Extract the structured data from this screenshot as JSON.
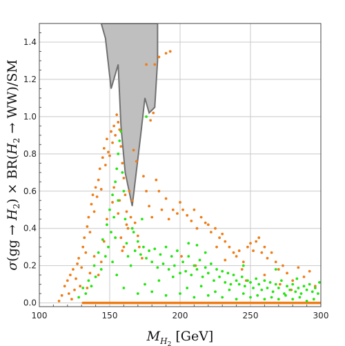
{
  "chart_data": {
    "type": "scatter",
    "xlabel": "M_{H_2} [GeV]",
    "ylabel": "σ(gg → H_2) × BR(H_2 → WW)/SM",
    "xlim": [
      100,
      300
    ],
    "ylim": [
      -0.02,
      1.5
    ],
    "xticks": [
      100,
      150,
      200,
      250,
      300
    ],
    "yticks": [
      0.0,
      0.2,
      0.4,
      0.6,
      0.8,
      1.0,
      1.2,
      1.4
    ],
    "grid": true,
    "colors": {
      "excluded_region": "#bfbfbf",
      "excluded_edge": "#707070",
      "orange_series": "#ef7d16",
      "green_series": "#22e60f"
    },
    "excluded_region": {
      "x": [
        144,
        147,
        151,
        156,
        158,
        161,
        166,
        172,
        175,
        178,
        182,
        184,
        184
      ],
      "y": [
        1.5,
        1.42,
        1.15,
        1.28,
        0.95,
        0.7,
        0.52,
        0.9,
        1.1,
        1.02,
        1.05,
        1.3,
        1.5
      ]
    },
    "series": [
      {
        "color": "orange",
        "points": [
          [
            114,
            0.01
          ],
          [
            116,
            0.04
          ],
          [
            118,
            0.09
          ],
          [
            120,
            0.12
          ],
          [
            121,
            0.05
          ],
          [
            122,
            0.15
          ],
          [
            123,
            0.02
          ],
          [
            124,
            0.18
          ],
          [
            125,
            0.07
          ],
          [
            126,
            0.13
          ],
          [
            127,
            0.21
          ],
          [
            128,
            0.24
          ],
          [
            129,
            0.09
          ],
          [
            130,
            0.19
          ],
          [
            131,
            0.3
          ],
          [
            132,
            0.35
          ],
          [
            133,
            0.27
          ],
          [
            134,
            0.41
          ],
          [
            135,
            0.46
          ],
          [
            136,
            0.38
          ],
          [
            137,
            0.53
          ],
          [
            138,
            0.58
          ],
          [
            139,
            0.49
          ],
          [
            140,
            0.62
          ],
          [
            141,
            0.57
          ],
          [
            142,
            0.66
          ],
          [
            143,
            0.72
          ],
          [
            144,
            0.61
          ],
          [
            145,
            0.78
          ],
          [
            146,
            0.83
          ],
          [
            147,
            0.74
          ],
          [
            148,
            0.88
          ],
          [
            149,
            0.81
          ],
          [
            150,
            0.79
          ],
          [
            151,
            0.92
          ],
          [
            152,
            0.86
          ],
          [
            153,
            0.95
          ],
          [
            154,
            0.9
          ],
          [
            155,
            1.01
          ],
          [
            156,
            0.97
          ],
          [
            157,
            0.93
          ],
          [
            158,
            0.84
          ],
          [
            159,
            0.75
          ],
          [
            160,
            0.67
          ],
          [
            161,
            0.58
          ],
          [
            162,
            0.49
          ],
          [
            163,
            0.4
          ],
          [
            157,
            0.55
          ],
          [
            156,
            0.48
          ],
          [
            158,
            0.35
          ],
          [
            159,
            0.28
          ],
          [
            153,
            0.62
          ],
          [
            152,
            0.54
          ],
          [
            148,
            0.45
          ],
          [
            146,
            0.33
          ],
          [
            144,
            0.22
          ],
          [
            142,
            0.15
          ],
          [
            139,
            0.25
          ],
          [
            136,
            0.16
          ],
          [
            134,
            0.08
          ],
          [
            160,
            0.3
          ],
          [
            162,
            0.42
          ],
          [
            165,
            0.46
          ],
          [
            168,
            0.43
          ],
          [
            170,
            0.36
          ],
          [
            164,
            0.6
          ],
          [
            166,
            0.55
          ],
          [
            174,
            0.68
          ],
          [
            176,
            0.6
          ],
          [
            178,
            0.52
          ],
          [
            180,
            0.46
          ],
          [
            183,
            0.66
          ],
          [
            185,
            0.6
          ],
          [
            187,
            0.5
          ],
          [
            190,
            0.56
          ],
          [
            192,
            0.45
          ],
          [
            195,
            0.5
          ],
          [
            198,
            0.48
          ],
          [
            200,
            0.54
          ],
          [
            202,
            0.5
          ],
          [
            205,
            0.47
          ],
          [
            208,
            0.44
          ],
          [
            210,
            0.5
          ],
          [
            212,
            0.4
          ],
          [
            215,
            0.46
          ],
          [
            218,
            0.43
          ],
          [
            220,
            0.42
          ],
          [
            222,
            0.38
          ],
          [
            225,
            0.4
          ],
          [
            228,
            0.35
          ],
          [
            230,
            0.37
          ],
          [
            232,
            0.33
          ],
          [
            235,
            0.3
          ],
          [
            238,
            0.27
          ],
          [
            240,
            0.25
          ],
          [
            242,
            0.28
          ],
          [
            245,
            0.22
          ],
          [
            248,
            0.3
          ],
          [
            250,
            0.32
          ],
          [
            252,
            0.28
          ],
          [
            254,
            0.33
          ],
          [
            256,
            0.35
          ],
          [
            258,
            0.27
          ],
          [
            260,
            0.3
          ],
          [
            262,
            0.24
          ],
          [
            265,
            0.27
          ],
          [
            268,
            0.22
          ],
          [
            270,
            0.18
          ],
          [
            273,
            0.2
          ],
          [
            276,
            0.16
          ],
          [
            280,
            0.12
          ],
          [
            284,
            0.19
          ],
          [
            288,
            0.14
          ],
          [
            292,
            0.17
          ],
          [
            296,
            0.09
          ],
          [
            190,
            1.34
          ],
          [
            193,
            1.35
          ],
          [
            182,
            1.28
          ],
          [
            185,
            1.32
          ],
          [
            176,
            1.28
          ],
          [
            179,
            0.98
          ],
          [
            181,
            1.02
          ],
          [
            226,
            0.3
          ],
          [
            232,
            0.23
          ],
          [
            244,
            0.18
          ],
          [
            247,
            0.12
          ],
          [
            260,
            0.15
          ],
          [
            271,
            0.1
          ],
          [
            279,
            0.07
          ],
          [
            167,
            0.82
          ],
          [
            169,
            0.76
          ],
          [
            171,
            0.3
          ],
          [
            173,
            0.24
          ],
          [
            201,
            0.25
          ],
          [
            211,
            0.2
          ]
        ]
      },
      {
        "color": "green",
        "points": [
          [
            128,
            0.03
          ],
          [
            131,
            0.08
          ],
          [
            133,
            0.05
          ],
          [
            135,
            0.12
          ],
          [
            137,
            0.09
          ],
          [
            139,
            0.2
          ],
          [
            140,
            0.14
          ],
          [
            142,
            0.27
          ],
          [
            144,
            0.18
          ],
          [
            145,
            0.34
          ],
          [
            147,
            0.25
          ],
          [
            148,
            0.42
          ],
          [
            149,
            0.3
          ],
          [
            150,
            0.5
          ],
          [
            151,
            0.38
          ],
          [
            152,
            0.58
          ],
          [
            153,
            0.46
          ],
          [
            154,
            0.65
          ],
          [
            155,
            0.72
          ],
          [
            156,
            0.8
          ],
          [
            157,
            0.87
          ],
          [
            158,
            0.92
          ],
          [
            156,
            0.55
          ],
          [
            154,
            0.35
          ],
          [
            152,
            0.22
          ],
          [
            159,
            0.7
          ],
          [
            160,
            0.6
          ],
          [
            161,
            0.45
          ],
          [
            162,
            0.32
          ],
          [
            163,
            0.25
          ],
          [
            165,
            0.2
          ],
          [
            167,
            0.38
          ],
          [
            168,
            0.28
          ],
          [
            170,
            0.33
          ],
          [
            172,
            0.26
          ],
          [
            174,
            0.3
          ],
          [
            176,
            0.24
          ],
          [
            178,
            0.28
          ],
          [
            180,
            0.22
          ],
          [
            182,
            0.29
          ],
          [
            184,
            0.19
          ],
          [
            186,
            0.26
          ],
          [
            188,
            0.21
          ],
          [
            190,
            0.3
          ],
          [
            192,
            0.18
          ],
          [
            194,
            0.25
          ],
          [
            196,
            0.2
          ],
          [
            198,
            0.28
          ],
          [
            200,
            0.16
          ],
          [
            202,
            0.22
          ],
          [
            204,
            0.17
          ],
          [
            206,
            0.25
          ],
          [
            208,
            0.15
          ],
          [
            210,
            0.2
          ],
          [
            212,
            0.18
          ],
          [
            214,
            0.23
          ],
          [
            216,
            0.14
          ],
          [
            218,
            0.19
          ],
          [
            220,
            0.16
          ],
          [
            222,
            0.21
          ],
          [
            224,
            0.12
          ],
          [
            226,
            0.18
          ],
          [
            228,
            0.14
          ],
          [
            230,
            0.17
          ],
          [
            232,
            0.11
          ],
          [
            234,
            0.16
          ],
          [
            236,
            0.1
          ],
          [
            238,
            0.15
          ],
          [
            240,
            0.12
          ],
          [
            242,
            0.1
          ],
          [
            244,
            0.14
          ],
          [
            246,
            0.09
          ],
          [
            248,
            0.12
          ],
          [
            250,
            0.11
          ],
          [
            252,
            0.08
          ],
          [
            254,
            0.13
          ],
          [
            256,
            0.1
          ],
          [
            258,
            0.07
          ],
          [
            260,
            0.12
          ],
          [
            262,
            0.08
          ],
          [
            264,
            0.11
          ],
          [
            266,
            0.06
          ],
          [
            268,
            0.1
          ],
          [
            270,
            0.08
          ],
          [
            272,
            0.12
          ],
          [
            274,
            0.05
          ],
          [
            276,
            0.09
          ],
          [
            278,
            0.07
          ],
          [
            280,
            0.1
          ],
          [
            282,
            0.06
          ],
          [
            284,
            0.08
          ],
          [
            286,
            0.05
          ],
          [
            288,
            0.09
          ],
          [
            290,
            0.07
          ],
          [
            292,
            0.1
          ],
          [
            294,
            0.06
          ],
          [
            296,
            0.08
          ],
          [
            298,
            0.05
          ],
          [
            155,
            0.15
          ],
          [
            175,
            0.1
          ],
          [
            185,
            0.12
          ],
          [
            195,
            0.14
          ],
          [
            205,
            0.08
          ],
          [
            215,
            0.09
          ],
          [
            225,
            0.06
          ],
          [
            235,
            0.07
          ],
          [
            245,
            0.05
          ],
          [
            255,
            0.04
          ],
          [
            265,
            0.03
          ],
          [
            275,
            0.04
          ],
          [
            285,
            0.03
          ],
          [
            295,
            0.02
          ],
          [
            160,
            0.08
          ],
          [
            170,
            0.05
          ],
          [
            180,
            0.06
          ],
          [
            190,
            0.04
          ],
          [
            200,
            0.05
          ],
          [
            210,
            0.03
          ],
          [
            220,
            0.04
          ],
          [
            230,
            0.03
          ],
          [
            240,
            0.02
          ],
          [
            250,
            0.03
          ],
          [
            260,
            0.02
          ],
          [
            270,
            0.02
          ],
          [
            280,
            0.02
          ],
          [
            290,
            0.01
          ],
          [
            176,
            1.0
          ],
          [
            173,
            0.45
          ],
          [
            166,
            0.4
          ],
          [
            206,
            0.32
          ],
          [
            212,
            0.31
          ],
          [
            218,
            0.27
          ],
          [
            245,
            0.2
          ],
          [
            268,
            0.18
          ],
          [
            283,
            0.13
          ],
          [
            299,
            0.11
          ]
        ]
      }
    ]
  }
}
